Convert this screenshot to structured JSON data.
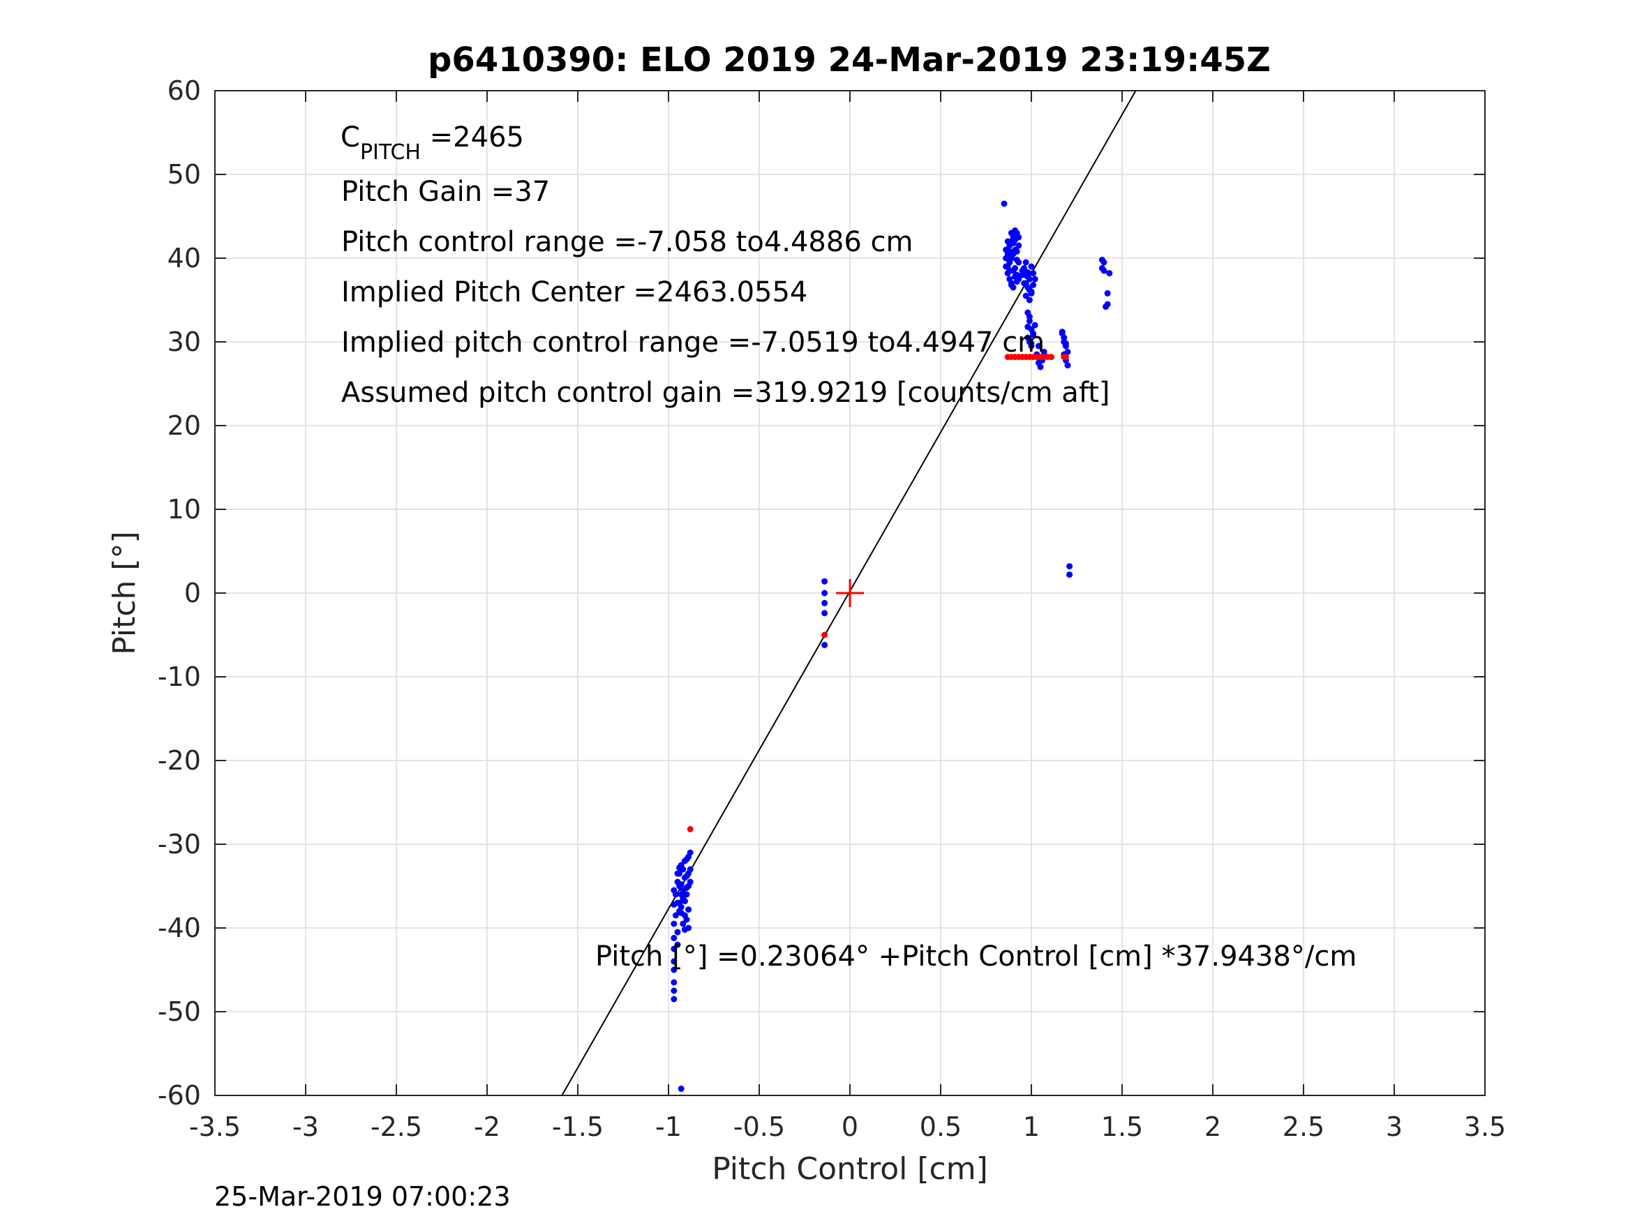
{
  "chart_data": {
    "type": "scatter",
    "title": "p6410390: ELO 2019 24-Mar-2019 23:19:45Z",
    "xlabel": "Pitch Control [cm]",
    "ylabel": "Pitch [°]",
    "xlim": [
      -3.5,
      3.5
    ],
    "ylim": [
      -60,
      60
    ],
    "xticks": [
      -3.5,
      -3,
      -2.5,
      -2,
      -1.5,
      -1,
      -0.5,
      0,
      0.5,
      1,
      1.5,
      2,
      2.5,
      3,
      3.5
    ],
    "xtick_labels": [
      "-3.5",
      "-3",
      "-2.5",
      "-2",
      "-1.5",
      "-1",
      "-0.5",
      "0",
      "0.5",
      "1",
      "1.5",
      "2",
      "2.5",
      "3",
      "3.5"
    ],
    "yticks": [
      -60,
      -50,
      -40,
      -30,
      -20,
      -10,
      0,
      10,
      20,
      30,
      40,
      50,
      60
    ],
    "ytick_labels": [
      "-60",
      "-50",
      "-40",
      "-30",
      "-20",
      "-10",
      "0",
      "10",
      "20",
      "30",
      "40",
      "50",
      "60"
    ],
    "grid": true,
    "colors": {
      "blue_points": "#0000ff",
      "red_points": "#ff0000",
      "fit_line": "#000000",
      "grid": "#dcdcdc",
      "axes": "#262626"
    },
    "fit_line": {
      "intercept": 0.23064,
      "slope": 37.9438
    },
    "center_marker": {
      "x": 0,
      "y": 0
    },
    "series": [
      {
        "color": "blue",
        "x": [
          -0.97,
          -0.97,
          -0.97,
          -0.97,
          -0.97,
          -0.97,
          -0.97,
          -0.97,
          -0.97,
          -0.97,
          -0.96,
          -0.96,
          -0.95,
          -0.95,
          -0.95,
          -0.94,
          -0.94,
          -0.94,
          -0.93,
          -0.93,
          -0.93,
          -0.92,
          -0.92,
          -0.92,
          -0.91,
          -0.91,
          -0.91,
          -0.9,
          -0.9,
          -0.9,
          -0.89,
          -0.89,
          -0.89,
          -0.88,
          -0.88,
          -0.88,
          -0.93,
          -0.9,
          -0.95,
          -0.92,
          -0.89,
          -0.91,
          -0.94,
          -0.9,
          -0.93,
          -0.91,
          -0.92,
          -0.94,
          -0.95,
          -0.89,
          -0.93,
          -0.14,
          -0.14,
          -0.14,
          -0.14,
          -0.14,
          -0.14,
          0.85,
          0.86,
          0.86,
          0.87,
          0.87,
          0.87,
          0.88,
          0.88,
          0.88,
          0.89,
          0.89,
          0.89,
          0.9,
          0.9,
          0.9,
          0.91,
          0.91,
          0.91,
          0.92,
          0.92,
          0.92,
          0.93,
          0.93,
          0.93,
          0.86,
          0.88,
          0.9,
          0.92,
          0.89,
          0.91,
          0.87,
          0.9,
          0.92,
          0.88,
          0.91,
          0.93,
          0.89,
          0.95,
          0.96,
          0.97,
          0.98,
          0.99,
          1.0,
          1.01,
          0.96,
          0.98,
          1.0,
          0.97,
          0.99,
          1.01,
          0.95,
          0.98,
          0.99,
          1.02,
          0.97,
          1.0,
          0.96,
          0.98,
          0.99,
          1.0,
          1.01,
          0.98,
          0.99,
          1.0,
          1.02,
          0.99,
          1.01,
          0.98,
          1.0,
          1.03,
          1.04,
          1.05,
          1.06,
          1.07,
          1.04,
          1.06,
          1.17,
          1.18,
          1.19,
          1.18,
          1.19,
          1.17,
          1.2,
          1.18,
          1.19,
          1.2,
          1.39,
          1.39,
          1.4,
          1.4,
          1.42,
          1.42,
          1.43,
          1.41,
          1.21,
          1.21
        ],
        "y": [
          -35.5,
          -37.2,
          -39.5,
          -41.2,
          -42.5,
          -44.0,
          -45.0,
          -46.5,
          -47.5,
          -48.5,
          -36.0,
          -38.5,
          -33.5,
          -37.0,
          -40.5,
          -32.8,
          -35.0,
          -38.0,
          -32.5,
          -34.8,
          -37.5,
          -33.0,
          -35.5,
          -36.5,
          -32.0,
          -34.0,
          -36.8,
          -31.8,
          -33.8,
          -36.0,
          -31.5,
          -33.5,
          -35.0,
          -31.0,
          -33.0,
          -34.5,
          -38.2,
          -39.0,
          -34.5,
          -36.0,
          -37.8,
          -38.5,
          -37.0,
          -35.2,
          -36.0,
          -40.2,
          -39.5,
          -33.5,
          -42.0,
          -40.0,
          -59.2,
          1.4,
          0.0,
          -1.2,
          -2.4,
          -5.0,
          -6.2,
          46.5,
          41.0,
          39.0,
          42.0,
          40.5,
          38.2,
          41.5,
          39.5,
          37.5,
          42.0,
          40.0,
          37.0,
          42.5,
          40.5,
          38.5,
          43.3,
          41.0,
          37.8,
          43.0,
          40.8,
          38.0,
          42.5,
          39.5,
          37.5,
          40.0,
          38.5,
          41.8,
          39.8,
          36.8,
          42.2,
          39.0,
          36.5,
          37.2,
          40.8,
          38.8,
          41.5,
          43.0,
          38.0,
          38.8,
          39.5,
          38.3,
          37.5,
          39.0,
          38.2,
          37.0,
          36.5,
          36.0,
          35.5,
          35.0,
          36.8,
          38.5,
          37.8,
          36.2,
          37.5,
          37.0,
          35.8,
          38.0,
          33.5,
          32.5,
          31.5,
          31.0,
          30.5,
          30.0,
          29.5,
          32.0,
          33.0,
          30.8,
          31.8,
          29.8,
          28.5,
          27.5,
          27.0,
          28.0,
          28.8,
          29.5,
          27.8,
          31.2,
          30.0,
          29.5,
          28.5,
          27.8,
          31.0,
          27.2,
          30.5,
          29.8,
          28.8,
          39.8,
          38.8,
          39.5,
          38.5,
          35.8,
          34.5,
          38.2,
          34.2,
          3.2,
          2.2
        ]
      },
      {
        "color": "red",
        "x": [
          0.87,
          0.89,
          0.91,
          0.93,
          0.95,
          0.97,
          0.99,
          1.01,
          1.03,
          1.05,
          1.07,
          1.09,
          1.11,
          1.18,
          1.19,
          -0.88,
          -0.14
        ],
        "y": [
          28.2,
          28.2,
          28.2,
          28.2,
          28.2,
          28.2,
          28.2,
          28.2,
          28.2,
          28.2,
          28.2,
          28.2,
          28.2,
          28.2,
          28.2,
          -28.2,
          -5.0
        ]
      }
    ],
    "annotations": {
      "c_pitch_main": "C",
      "c_pitch_sub": "PITCH",
      "c_pitch_value": " =2465",
      "pitch_gain": "Pitch Gain =37",
      "control_range": "Pitch control range =-7.058 to4.4886 cm",
      "implied_center": "Implied Pitch Center =2463.0554",
      "implied_range": "Implied pitch control range =-7.0519 to4.4947 cm",
      "assumed_gain": "Assumed pitch control gain =319.9219 [counts/cm aft]",
      "equation": "Pitch [°] =0.23064° +Pitch Control [cm] *37.9438°/cm"
    },
    "footer_timestamp": "25-Mar-2019 07:00:23"
  }
}
